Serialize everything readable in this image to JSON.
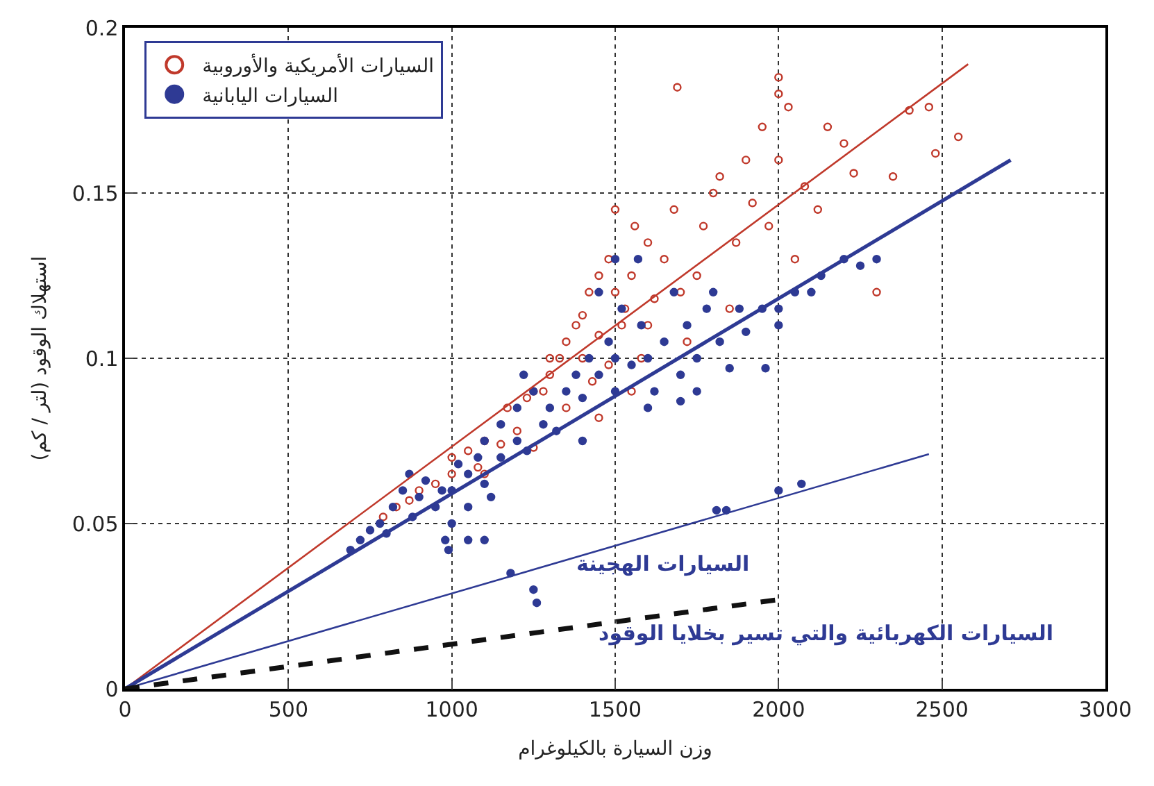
{
  "chart_data": {
    "type": "scatter",
    "xlabel": "وزن السيارة بالكيلوغرام",
    "ylabel": "استهلاك الوقود (لتر / كم)",
    "xlim": [
      0,
      3000
    ],
    "xticks": [
      0,
      500,
      1000,
      1500,
      2000,
      2500,
      3000
    ],
    "ylim": [
      0,
      0.2
    ],
    "yticks": [
      0,
      0.05,
      0.1,
      0.15,
      0.2
    ],
    "grid": true,
    "legend": "top left",
    "series": [
      {
        "name": "السيارات الأمريكية والأوروبية",
        "color": "#c0392b",
        "marker": "circle",
        "x": [
          790,
          830,
          870,
          900,
          950,
          1000,
          1000,
          1050,
          1080,
          1100,
          1150,
          1170,
          1200,
          1230,
          1250,
          1280,
          1300,
          1300,
          1330,
          1350,
          1380,
          1400,
          1400,
          1420,
          1430,
          1450,
          1450,
          1480,
          1480,
          1500,
          1500,
          1520,
          1530,
          1550,
          1560,
          1580,
          1600,
          1600,
          1620,
          1650,
          1680,
          1690,
          1700,
          1720,
          1750,
          1770,
          1800,
          1820,
          1850,
          1870,
          1900,
          1920,
          1950,
          1970,
          2000,
          2000,
          2000,
          2030,
          2050,
          2080,
          2120,
          2150,
          2200,
          2230,
          2300,
          2350,
          2400,
          2460,
          2550,
          2480,
          1350,
          1450,
          1550,
          1250,
          1100
        ],
        "values": [
          0.052,
          0.055,
          0.057,
          0.06,
          0.062,
          0.065,
          0.07,
          0.072,
          0.067,
          0.075,
          0.074,
          0.085,
          0.078,
          0.088,
          0.09,
          0.09,
          0.095,
          0.1,
          0.1,
          0.105,
          0.11,
          0.1,
          0.113,
          0.12,
          0.093,
          0.107,
          0.125,
          0.098,
          0.13,
          0.12,
          0.145,
          0.11,
          0.115,
          0.125,
          0.14,
          0.1,
          0.11,
          0.135,
          0.118,
          0.13,
          0.145,
          0.182,
          0.12,
          0.105,
          0.125,
          0.14,
          0.15,
          0.155,
          0.115,
          0.135,
          0.16,
          0.147,
          0.17,
          0.14,
          0.18,
          0.185,
          0.16,
          0.176,
          0.13,
          0.152,
          0.145,
          0.17,
          0.165,
          0.156,
          0.12,
          0.155,
          0.175,
          0.176,
          0.167,
          0.162,
          0.085,
          0.082,
          0.09,
          0.073,
          0.065
        ]
      },
      {
        "name": "السيارات اليابانية",
        "color": "#2e3a94",
        "marker": "circle",
        "x": [
          690,
          720,
          750,
          780,
          800,
          820,
          850,
          870,
          880,
          900,
          920,
          950,
          970,
          980,
          990,
          1000,
          1000,
          1020,
          1050,
          1050,
          1080,
          1100,
          1100,
          1120,
          1150,
          1150,
          1180,
          1200,
          1200,
          1230,
          1250,
          1260,
          1250,
          1280,
          1300,
          1320,
          1350,
          1380,
          1400,
          1420,
          1450,
          1480,
          1500,
          1500,
          1520,
          1550,
          1580,
          1600,
          1620,
          1650,
          1680,
          1700,
          1720,
          1750,
          1780,
          1800,
          1820,
          1850,
          1880,
          1900,
          1950,
          1960,
          2000,
          2000,
          2050,
          2100,
          2130,
          2200,
          2250,
          2300,
          1810,
          1840,
          2000,
          2070,
          1450,
          1500,
          1570,
          1600,
          1400,
          1700,
          1750,
          1050,
          1100,
          1220
        ],
        "values": [
          0.042,
          0.045,
          0.048,
          0.05,
          0.047,
          0.055,
          0.06,
          0.065,
          0.052,
          0.058,
          0.063,
          0.055,
          0.06,
          0.045,
          0.042,
          0.05,
          0.06,
          0.068,
          0.065,
          0.055,
          0.07,
          0.062,
          0.075,
          0.058,
          0.07,
          0.08,
          0.035,
          0.075,
          0.085,
          0.072,
          0.03,
          0.026,
          0.09,
          0.08,
          0.085,
          0.078,
          0.09,
          0.095,
          0.088,
          0.1,
          0.095,
          0.105,
          0.09,
          0.1,
          0.115,
          0.098,
          0.11,
          0.1,
          0.09,
          0.105,
          0.12,
          0.095,
          0.11,
          0.1,
          0.115,
          0.12,
          0.105,
          0.097,
          0.115,
          0.108,
          0.115,
          0.097,
          0.11,
          0.115,
          0.12,
          0.12,
          0.125,
          0.13,
          0.128,
          0.13,
          0.054,
          0.054,
          0.06,
          0.062,
          0.12,
          0.13,
          0.13,
          0.085,
          0.075,
          0.087,
          0.09,
          0.045,
          0.045,
          0.095
        ]
      },
      {
        "type": "line",
        "color": "#c0392b",
        "line_style": "solid",
        "x": [
          0,
          2580
        ],
        "values": [
          0,
          0.189
        ]
      },
      {
        "type": "line",
        "color": "#2e3a94",
        "line_style": "solid",
        "x": [
          0,
          2710
        ],
        "values": [
          0,
          0.16
        ]
      },
      {
        "type": "line",
        "color": "#2e3a94",
        "line_style": "solid",
        "x": [
          0,
          2460
        ],
        "values": [
          0,
          0.071
        ]
      },
      {
        "type": "line",
        "color": "#111111",
        "line_style": "dashed",
        "x": [
          0,
          2000
        ],
        "values": [
          0,
          0.027
        ]
      }
    ],
    "annotations": [
      "السيارات الهجينة",
      "السيارات الكهربائية والتي تسير بخلايا الوقود"
    ]
  }
}
